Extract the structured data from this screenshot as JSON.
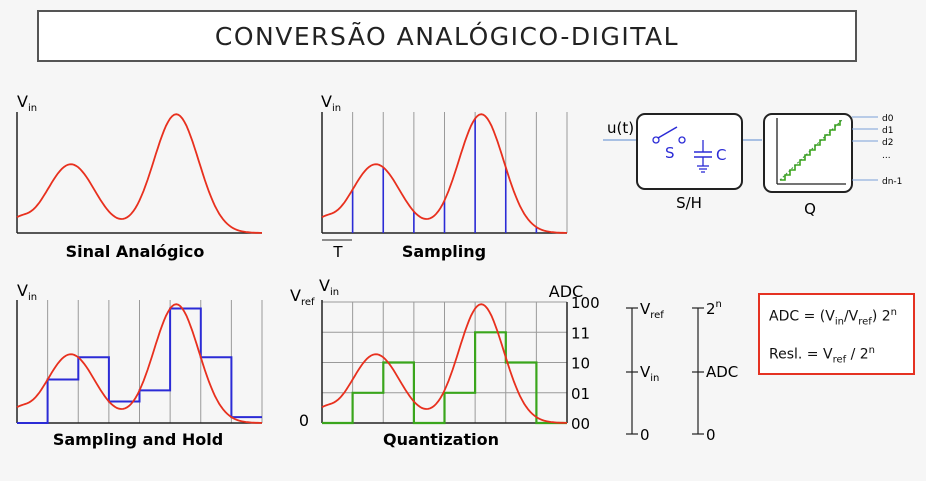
{
  "title": "CONVERSÃO ANALÓGICO-DIGITAL",
  "panels": {
    "analog": {
      "y_label_main": "V",
      "y_label_sub": "in",
      "caption": "Sinal Analógico"
    },
    "sampling": {
      "y_label_main": "V",
      "y_label_sub": "in",
      "caption": "Sampling",
      "period_label": "T"
    },
    "hold": {
      "y_label_main": "V",
      "y_label_sub": "in",
      "caption": "Sampling and Hold"
    },
    "quant": {
      "y_label_main": "V",
      "y_label_sub": "in",
      "vref_main": "V",
      "vref_sub": "ref",
      "zero": "0",
      "adc_label": "ADC",
      "codes": [
        "100",
        "11",
        "10",
        "01",
        "00"
      ],
      "caption": "Quantization"
    }
  },
  "blocks": {
    "input_label": "u(t)",
    "switch_label": "S",
    "cap_label": "C",
    "sh_label": "S/H",
    "q_label": "Q",
    "outputs": [
      "d0",
      "d1",
      "d2",
      "...",
      "dn-1"
    ]
  },
  "scales": {
    "left": {
      "top_main": "V",
      "top_sub": "ref",
      "mid_main": "V",
      "mid_sub": "in",
      "bottom": "0"
    },
    "right": {
      "top_main": "2",
      "top_sup": "n",
      "mid": "ADC",
      "bottom": "0"
    }
  },
  "formulas": {
    "adc_prefix": "ADC = (V",
    "adc_in": "in",
    "adc_slash": "/V",
    "adc_ref": "ref",
    "adc_close": ") 2",
    "adc_n": "n",
    "resl_prefix": "Resl. = V",
    "resl_ref": "ref",
    "resl_div": " / 2",
    "resl_n": "n"
  },
  "colors": {
    "signal": "#e8301e",
    "sample": "#2b2bd6",
    "quant": "#3aa51c",
    "grid": "#9a9a9a",
    "frame": "#222222",
    "formula_border": "#e53222"
  }
}
